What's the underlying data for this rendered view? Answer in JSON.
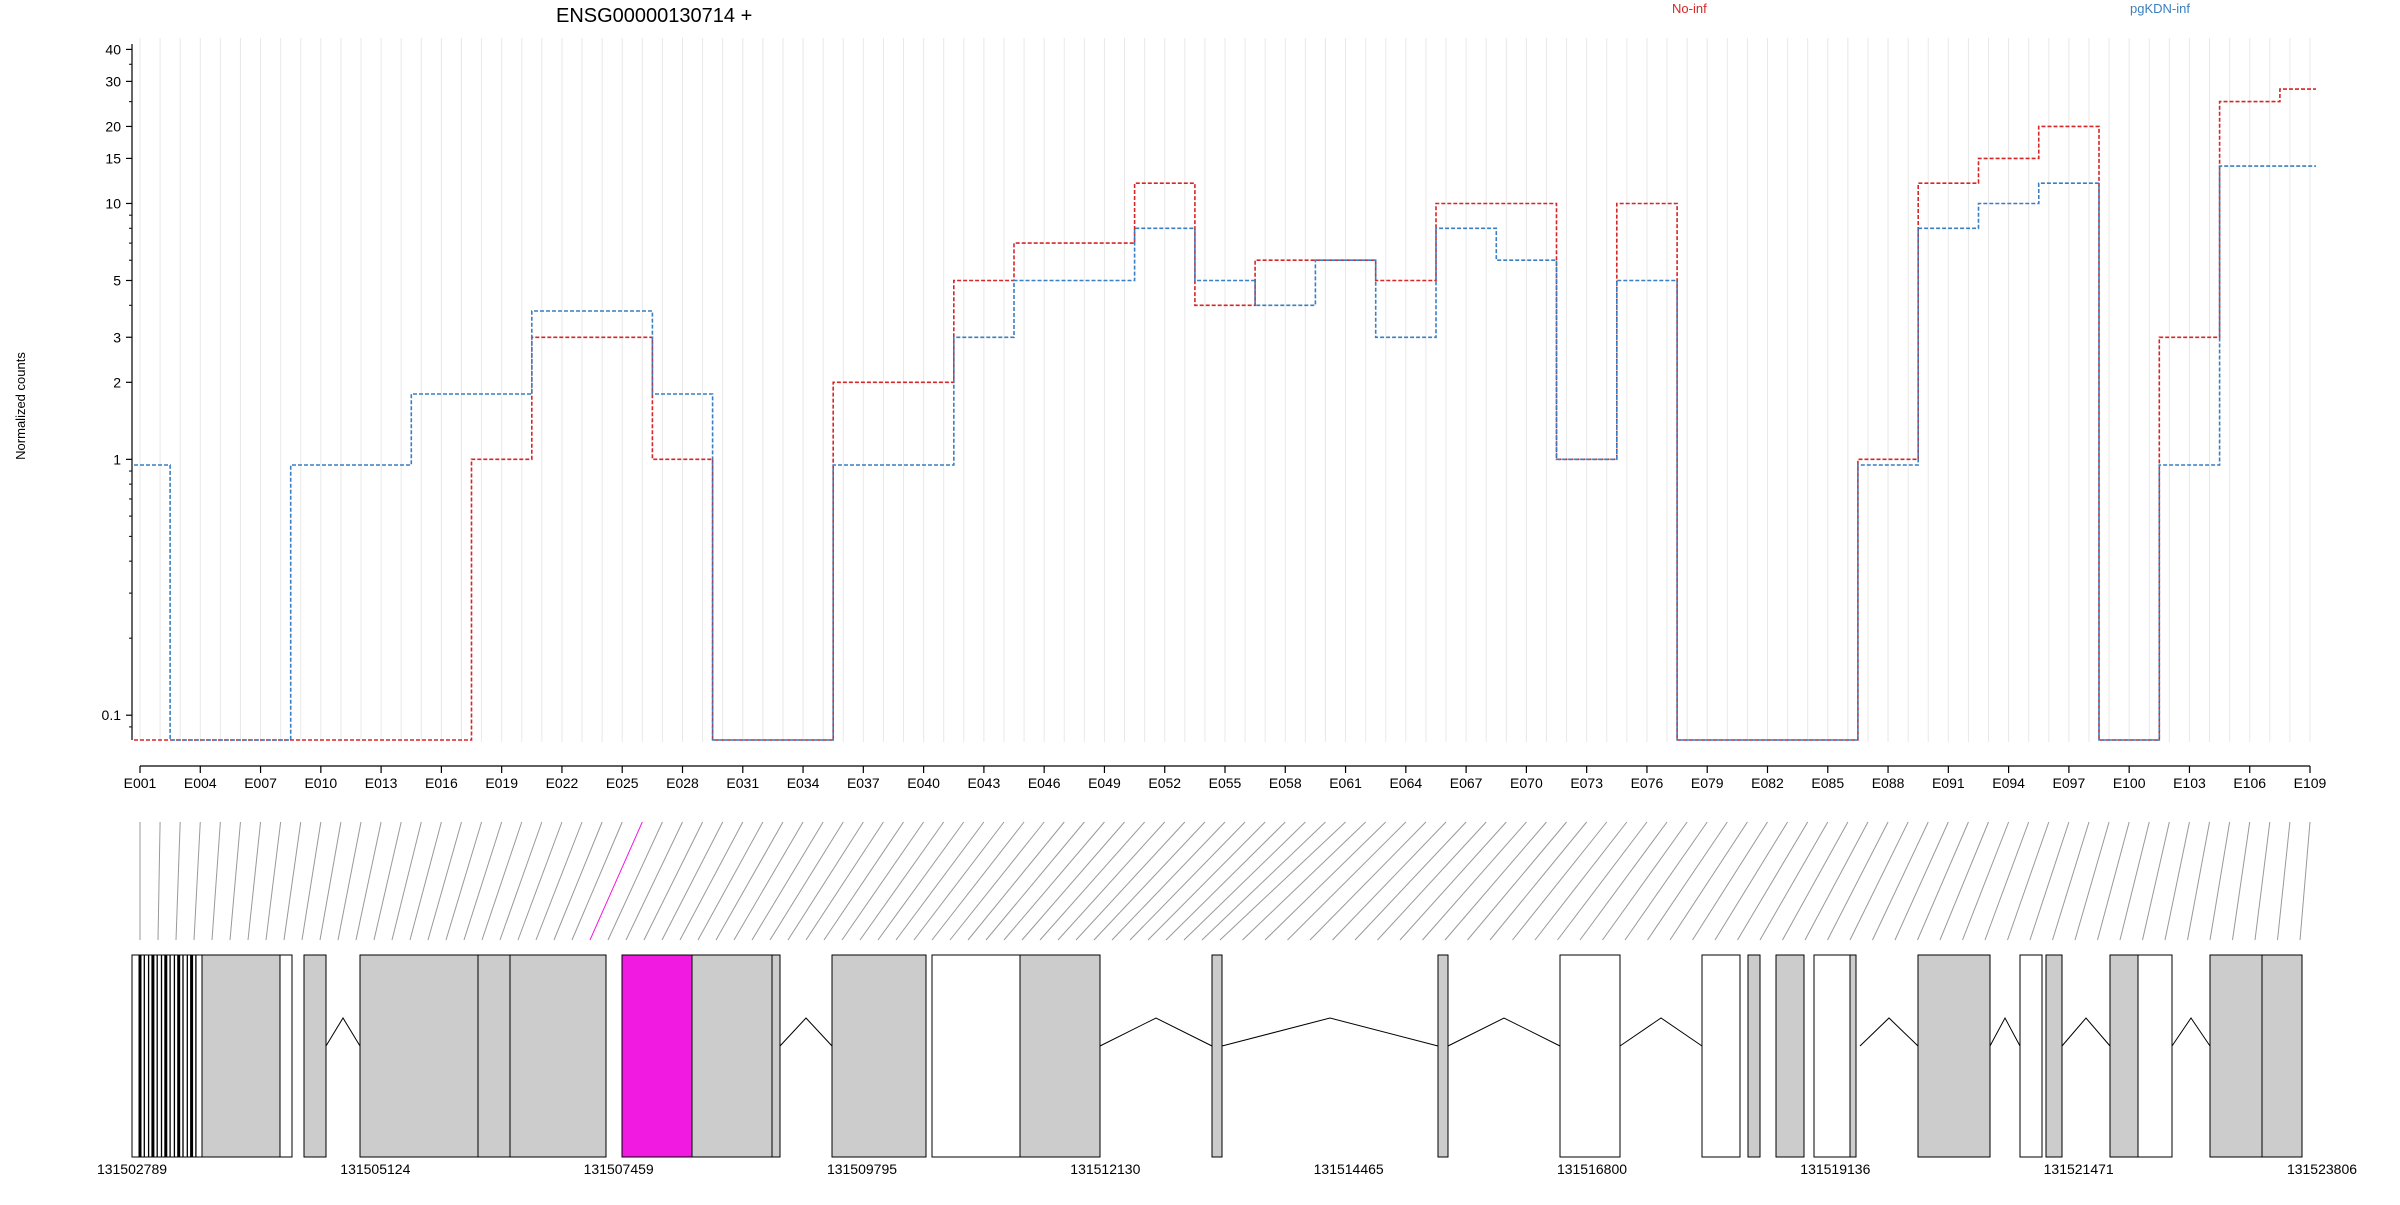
{
  "chart_data": {
    "type": "line",
    "title": "ENSG00000130714 +",
    "ylabel": "Normalized counts",
    "xlabel": "",
    "yscale": "log",
    "ylim": [
      0.08,
      42
    ],
    "yticks": [
      "0.1",
      "1",
      "2",
      "3",
      "5",
      "10",
      "15",
      "20",
      "30",
      "40"
    ],
    "legend_placement": "top",
    "grid": "vertical-light",
    "colors": {
      "No-inf": "#d62728",
      "pgKDN-inf": "#3a7fc1",
      "highlight": "#f01ae0",
      "exon_fill": "#cccccc"
    },
    "categories": [
      "E001",
      "E004",
      "E007",
      "E010",
      "E013",
      "E016",
      "E019",
      "E022",
      "E025",
      "E028",
      "E031",
      "E034",
      "E037",
      "E040",
      "E043",
      "E046",
      "E049",
      "E052",
      "E055",
      "E058",
      "E061",
      "E064",
      "E067",
      "E070",
      "E073",
      "E076",
      "E079",
      "E082",
      "E085",
      "E088",
      "E091",
      "E094",
      "E097",
      "E100",
      "E103",
      "E106",
      "E109"
    ],
    "series": [
      {
        "name": "No-inf",
        "values": [
          0.08,
          0.08,
          0.08,
          0.08,
          0.08,
          0.08,
          1,
          3,
          3,
          1,
          0.08,
          0.08,
          2,
          2,
          5,
          7,
          7,
          12,
          4,
          6,
          6,
          5,
          10,
          10,
          1,
          10,
          0.08,
          0.08,
          0.08,
          1,
          12,
          15,
          20,
          0.08,
          3,
          25,
          28
        ]
      },
      {
        "name": "pgKDN-inf",
        "values": [
          0.95,
          0.08,
          0.08,
          0.95,
          0.95,
          1.8,
          1.8,
          3.8,
          3.8,
          1.8,
          0.08,
          0.08,
          0.95,
          0.95,
          3,
          5,
          5,
          8,
          5,
          4,
          6,
          3,
          8,
          6,
          1,
          5,
          0.08,
          0.08,
          0.08,
          0.95,
          8,
          10,
          12,
          0.08,
          0.95,
          14,
          14
        ]
      }
    ],
    "legend": [
      "No-inf",
      "pgKDN-inf"
    ],
    "coordinate_ticks": [
      "131502789",
      "131505124",
      "131507459",
      "131509795",
      "131512130",
      "131514465",
      "131516800",
      "131519136",
      "131521471",
      "131523806"
    ],
    "highlighted_exon": "E026"
  }
}
